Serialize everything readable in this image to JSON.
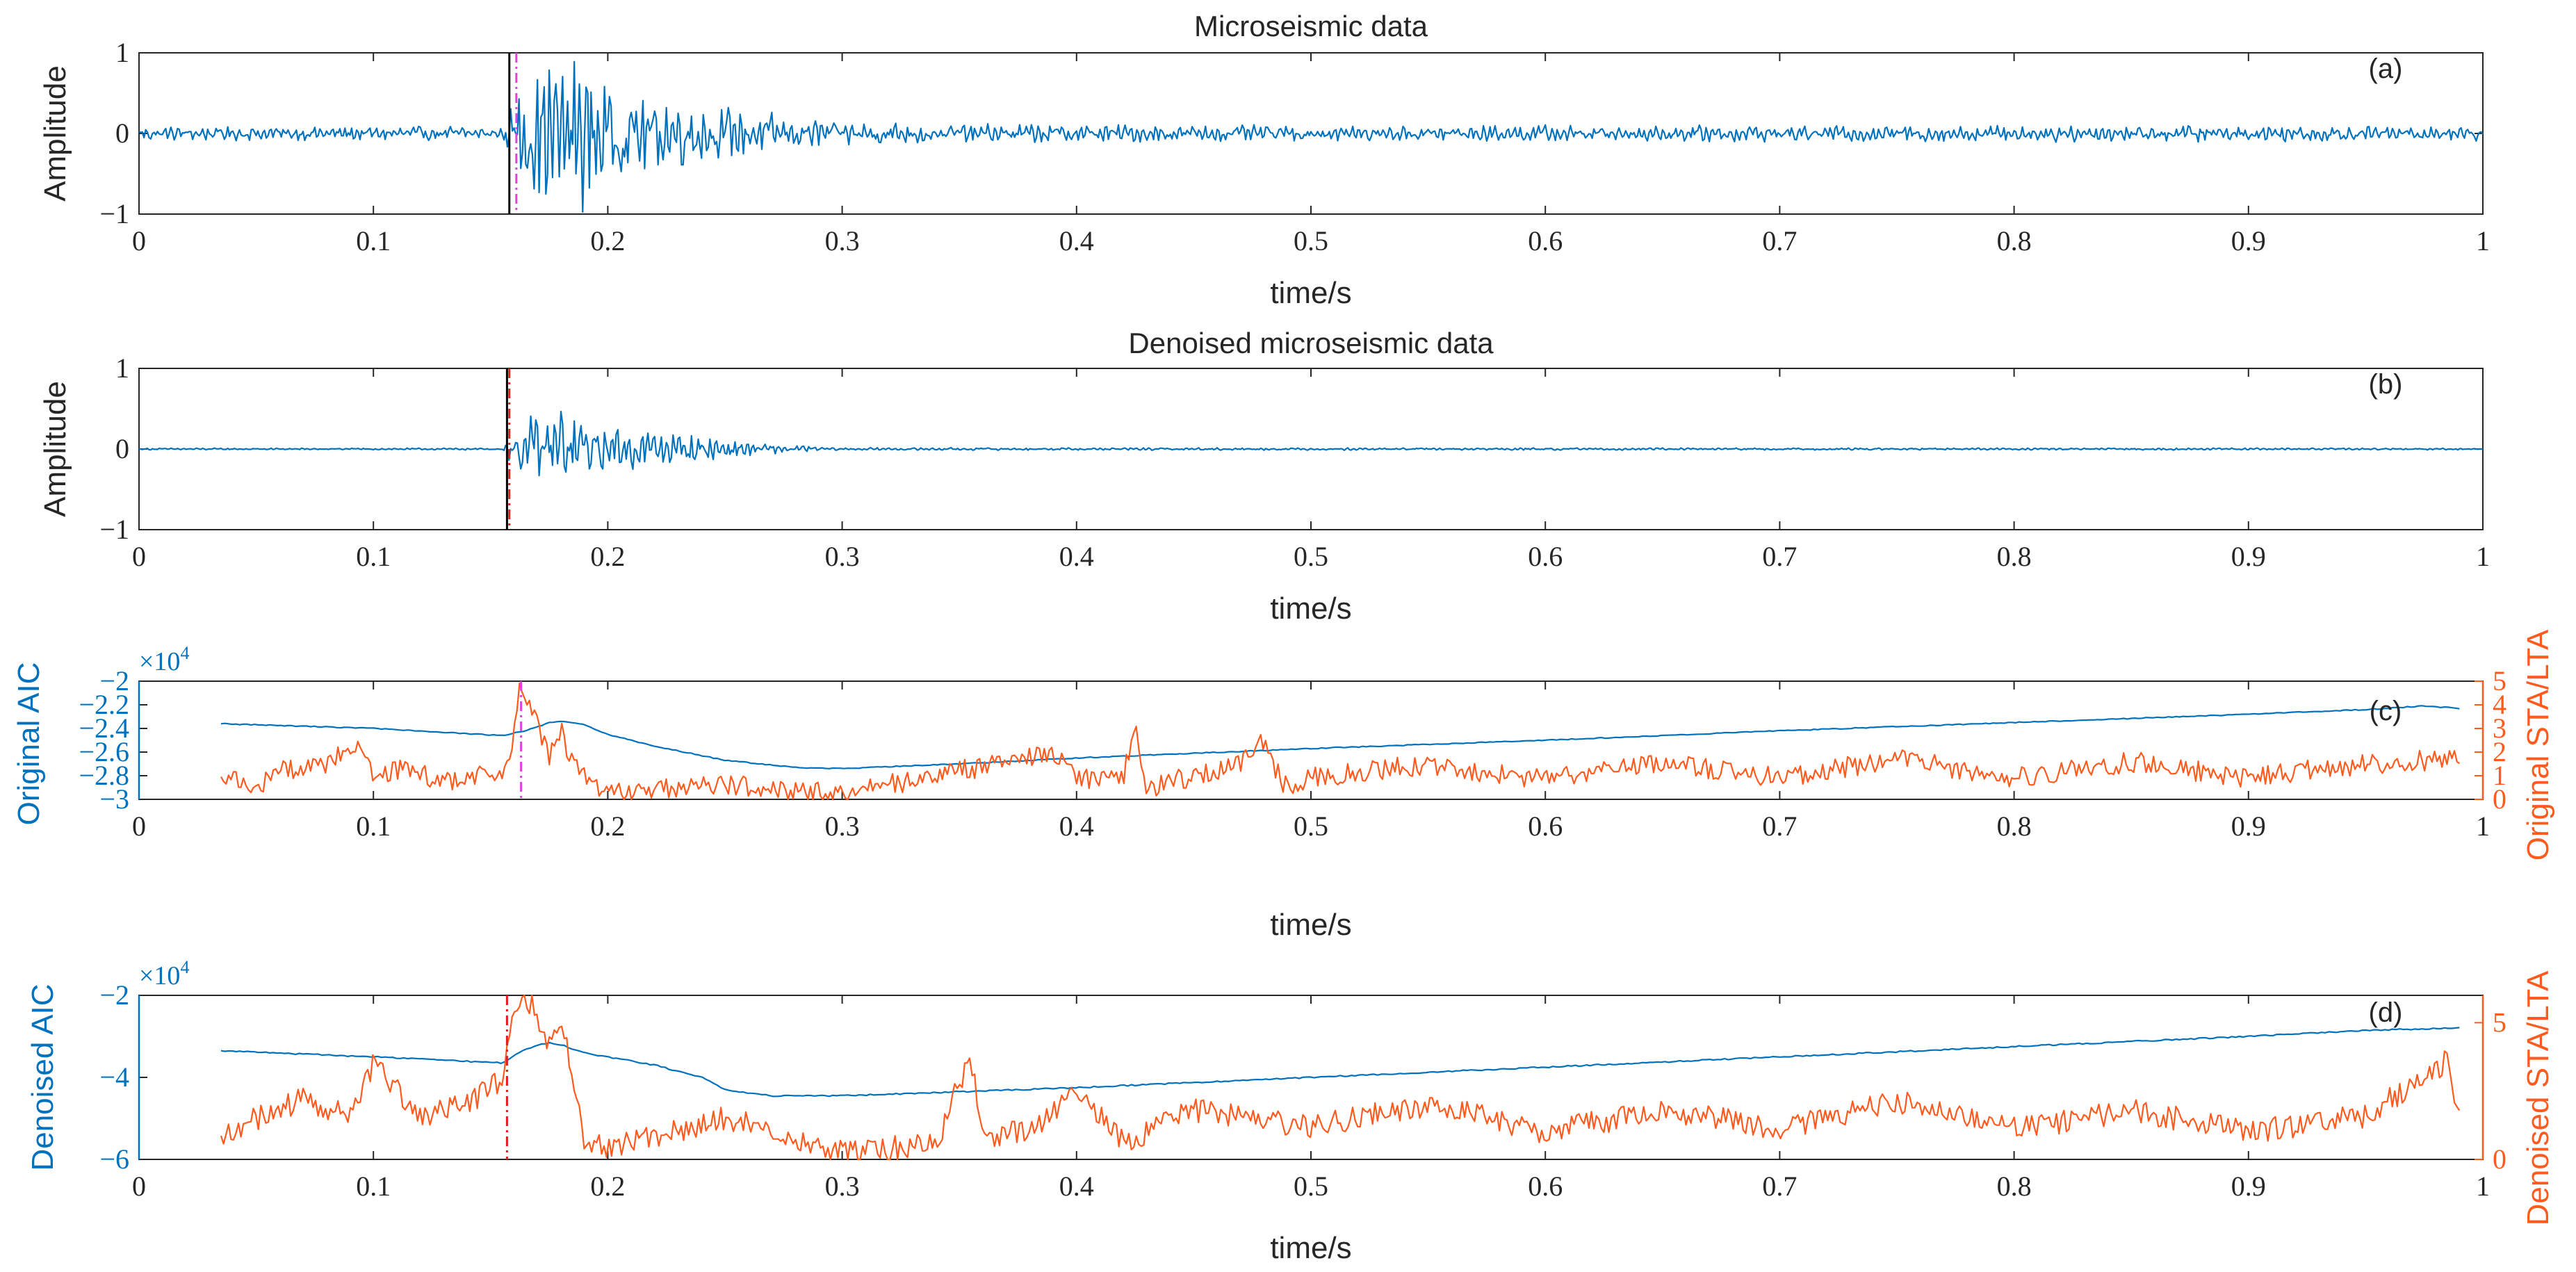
{
  "figure": {
    "colors": {
      "signal": "#0072BD",
      "stalta": "#FF5B1F",
      "pick_black": "#000000",
      "pick_magenta": "#E040E0",
      "pick_red": "#E01E1E",
      "axis": "#262626",
      "tick_label": "#262626"
    }
  },
  "chart_data": [
    {
      "id": "a",
      "type": "line",
      "title": "Microseismic data",
      "panel_label": "(a)",
      "xlabel": "time/s",
      "ylabel": "Amplitude",
      "xlim": [
        0,
        1
      ],
      "ylim": [
        -1,
        1
      ],
      "xticks": [
        0,
        0.1,
        0.2,
        0.3,
        0.4,
        0.5,
        0.6,
        0.7,
        0.8,
        0.9,
        1
      ],
      "xtick_labels": [
        "0",
        "0.1",
        "0.2",
        "0.3",
        "0.4",
        "0.5",
        "0.6",
        "0.7",
        "0.8",
        "0.9",
        "1"
      ],
      "yticks": [
        -1,
        0,
        1
      ],
      "ytick_labels": [
        "−1",
        "0",
        "1"
      ],
      "picks": [
        {
          "t": 0.158,
          "style": "solid",
          "color": "#000000"
        },
        {
          "t": 0.161,
          "style": "dashdot",
          "color": "#E040E0"
        }
      ],
      "series": [
        {
          "name": "Microseismic data",
          "color": "#0072BD",
          "x": [
            0,
            0.03,
            0.06,
            0.09,
            0.12,
            0.15,
            0.158,
            0.162,
            0.166,
            0.17,
            0.174,
            0.178,
            0.182,
            0.186,
            0.19,
            0.194,
            0.198,
            0.202,
            0.21,
            0.22,
            0.23,
            0.24,
            0.25,
            0.26,
            0.27,
            0.28,
            0.29,
            0.3,
            0.33,
            0.36,
            0.39,
            0.42,
            0.45,
            0.5,
            0.6,
            0.7,
            0.8,
            0.9,
            1
          ],
          "y": [
            0,
            0.06,
            -0.08,
            0.06,
            -0.06,
            0.07,
            0.0,
            0.55,
            -0.45,
            0.8,
            -0.7,
            0.6,
            -0.95,
            0.9,
            -0.8,
            0.7,
            -0.6,
            0.65,
            -0.4,
            0.35,
            -0.3,
            0.3,
            -0.25,
            0.2,
            -0.18,
            0.15,
            -0.12,
            0.1,
            -0.09,
            0.08,
            -0.08,
            -0.12,
            0.08,
            -0.06,
            0.07,
            -0.08,
            0.07,
            -0.09,
            0
          ],
          "envelope": {
            "x": [
              0,
              0.155,
              0.16,
              0.17,
              0.18,
              0.19,
              0.2,
              0.22,
              0.24,
              0.26,
              0.28,
              0.3,
              0.35,
              0.4,
              0.5,
              1
            ],
            "amp": [
              0.08,
              0.08,
              0.5,
              0.75,
              0.95,
              0.85,
              0.6,
              0.45,
              0.35,
              0.25,
              0.18,
              0.14,
              0.11,
              0.1,
              0.09,
              0.09
            ]
          }
        }
      ]
    },
    {
      "id": "b",
      "type": "line",
      "title": "Denoised microseismic data",
      "panel_label": "(b)",
      "xlabel": "time/s",
      "ylabel": "Amplitude",
      "xlim": [
        0,
        1
      ],
      "ylim": [
        -1,
        1
      ],
      "xticks": [
        0,
        0.1,
        0.2,
        0.3,
        0.4,
        0.5,
        0.6,
        0.7,
        0.8,
        0.9,
        1
      ],
      "xtick_labels": [
        "0",
        "0.1",
        "0.2",
        "0.3",
        "0.4",
        "0.5",
        "0.6",
        "0.7",
        "0.8",
        "0.9",
        "1"
      ],
      "yticks": [
        -1,
        0,
        1
      ],
      "ytick_labels": [
        "−1",
        "0",
        "1"
      ],
      "picks": [
        {
          "t": 0.157,
          "style": "solid",
          "color": "#000000"
        },
        {
          "t": 0.158,
          "style": "dashdot",
          "color": "#E01E1E"
        }
      ],
      "series": [
        {
          "name": "Denoised microseismic data",
          "color": "#0072BD",
          "x": [
            0,
            0.1,
            0.155,
            0.16,
            0.165,
            0.17,
            0.175,
            0.18,
            0.185,
            0.19,
            0.2,
            0.21,
            0.22,
            0.23,
            0.24,
            0.25,
            0.26,
            0.27,
            0.28,
            0.3,
            0.5,
            1
          ],
          "y": [
            0,
            0,
            0,
            0.2,
            -0.3,
            0.35,
            -0.45,
            0.4,
            -0.6,
            0.3,
            -0.25,
            0.25,
            -0.2,
            0.2,
            -0.15,
            0.12,
            -0.08,
            0.05,
            -0.03,
            0.01,
            0,
            0
          ],
          "envelope": {
            "x": [
              0,
              0.155,
              0.16,
              0.17,
              0.18,
              0.19,
              0.2,
              0.22,
              0.24,
              0.26,
              0.28,
              0.3,
              1
            ],
            "amp": [
              0.01,
              0.01,
              0.25,
              0.4,
              0.55,
              0.35,
              0.25,
              0.2,
              0.15,
              0.08,
              0.04,
              0.015,
              0.01
            ]
          }
        }
      ]
    },
    {
      "id": "c",
      "type": "line",
      "panel_label": "(c)",
      "xlabel": "time/s",
      "ylabel": "Original AIC",
      "ylabel_right": "Original STA/LTA",
      "exponent_label": "×10",
      "exponent_power": "4",
      "xlim": [
        0,
        1
      ],
      "ylim": [
        -3,
        -2
      ],
      "ylim_right": [
        0,
        5
      ],
      "xticks": [
        0,
        0.1,
        0.2,
        0.3,
        0.4,
        0.5,
        0.6,
        0.7,
        0.8,
        0.9,
        1
      ],
      "xtick_labels": [
        "0",
        "0.1",
        "0.2",
        "0.3",
        "0.4",
        "0.5",
        "0.6",
        "0.7",
        "0.8",
        "0.9",
        "1"
      ],
      "yticks": [
        -3,
        -2.8,
        -2.6,
        -2.4,
        -2.2,
        -2
      ],
      "ytick_labels": [
        "−3",
        "−2.8",
        "−2.6",
        "−2.4",
        "−2.2",
        "−2"
      ],
      "yticks_right": [
        0,
        1,
        2,
        3,
        4,
        5
      ],
      "ytick_labels_right": [
        "0",
        "1",
        "2",
        "3",
        "4",
        "5"
      ],
      "picks": [
        {
          "t": 0.163,
          "style": "dashdot",
          "color": "#E040E0"
        }
      ],
      "series": [
        {
          "name": "Original AIC",
          "axis": "left",
          "color": "#0072BD",
          "x": [
            0.035,
            0.1,
            0.155,
            0.165,
            0.175,
            0.18,
            0.19,
            0.2,
            0.22,
            0.25,
            0.28,
            0.3,
            0.35,
            0.4,
            0.5,
            0.6,
            0.7,
            0.8,
            0.9,
            0.95,
            0.975,
            0.99
          ],
          "y": [
            -2.36,
            -2.4,
            -2.46,
            -2.42,
            -2.35,
            -2.34,
            -2.37,
            -2.45,
            -2.55,
            -2.67,
            -2.73,
            -2.74,
            -2.7,
            -2.65,
            -2.57,
            -2.5,
            -2.42,
            -2.35,
            -2.28,
            -2.24,
            -2.21,
            -2.23
          ]
        },
        {
          "name": "Original STA/LTA",
          "axis": "right",
          "color": "#FF5B1F",
          "x": [
            0.035,
            0.05,
            0.06,
            0.08,
            0.095,
            0.1,
            0.11,
            0.13,
            0.15,
            0.158,
            0.162,
            0.166,
            0.17,
            0.175,
            0.18,
            0.185,
            0.19,
            0.2,
            0.25,
            0.3,
            0.35,
            0.39,
            0.4,
            0.42,
            0.425,
            0.43,
            0.45,
            0.47,
            0.478,
            0.49,
            0.5,
            0.55,
            0.6,
            0.65,
            0.7,
            0.75,
            0.8,
            0.85,
            0.9,
            0.95,
            0.99
          ],
          "y": [
            0.9,
            0.5,
            1.2,
            1.5,
            2.5,
            0.6,
            1.3,
            0.8,
            1.0,
            1.5,
            4.5,
            4.2,
            3.2,
            1.8,
            2.9,
            1.5,
            1.0,
            0.3,
            0.6,
            0.2,
            1.2,
            2.0,
            0.8,
            1.0,
            3.3,
            0.5,
            1.0,
            1.5,
            2.6,
            0.4,
            0.9,
            1.5,
            0.8,
            1.6,
            0.9,
            1.7,
            0.9,
            1.6,
            0.9,
            1.5,
            1.7
          ]
        }
      ]
    },
    {
      "id": "d",
      "type": "line",
      "panel_label": "(d)",
      "xlabel": "time/s",
      "ylabel": "Denoised AIC",
      "ylabel_right": "Denoised STA/LTA",
      "exponent_label": "×10",
      "exponent_power": "4",
      "xlim": [
        0,
        1
      ],
      "ylim": [
        -6,
        -2
      ],
      "ylim_right": [
        0,
        6
      ],
      "xticks": [
        0,
        0.1,
        0.2,
        0.3,
        0.4,
        0.5,
        0.6,
        0.7,
        0.8,
        0.9,
        1
      ],
      "xtick_labels": [
        "0",
        "0.1",
        "0.2",
        "0.3",
        "0.4",
        "0.5",
        "0.6",
        "0.7",
        "0.8",
        "0.9",
        "1"
      ],
      "yticks": [
        -6,
        -4,
        -2
      ],
      "ytick_labels": [
        "−6",
        "−4",
        "−2"
      ],
      "yticks_right": [
        0,
        5
      ],
      "ytick_labels_right": [
        "0",
        "5"
      ],
      "picks": [
        {
          "t": 0.157,
          "style": "dashdot",
          "color": "#E01E1E"
        }
      ],
      "series": [
        {
          "name": "Denoised AIC",
          "axis": "left",
          "color": "#0072BD",
          "x": [
            0.035,
            0.1,
            0.155,
            0.165,
            0.175,
            0.18,
            0.19,
            0.2,
            0.22,
            0.24,
            0.25,
            0.27,
            0.3,
            0.35,
            0.4,
            0.5,
            0.6,
            0.7,
            0.8,
            0.9,
            0.95,
            0.99
          ],
          "y": [
            -3.35,
            -3.5,
            -3.65,
            -3.3,
            -3.15,
            -3.2,
            -3.4,
            -3.5,
            -3.7,
            -4.0,
            -4.3,
            -4.45,
            -4.45,
            -4.35,
            -4.25,
            -4.0,
            -3.75,
            -3.5,
            -3.25,
            -3.0,
            -2.85,
            -2.8
          ]
        },
        {
          "name": "Denoised STA/LTA",
          "axis": "right",
          "color": "#FF5B1F",
          "x": [
            0.035,
            0.05,
            0.07,
            0.09,
            0.1,
            0.12,
            0.14,
            0.155,
            0.16,
            0.165,
            0.17,
            0.175,
            0.18,
            0.185,
            0.19,
            0.2,
            0.25,
            0.3,
            0.34,
            0.35,
            0.355,
            0.36,
            0.38,
            0.4,
            0.42,
            0.45,
            0.5,
            0.55,
            0.6,
            0.65,
            0.7,
            0.75,
            0.8,
            0.85,
            0.9,
            0.95,
            0.985,
            0.99
          ],
          "y": [
            0.8,
            1.5,
            2.2,
            1.6,
            3.5,
            1.5,
            2.0,
            3.0,
            5.5,
            6.0,
            5.3,
            4.3,
            5.0,
            3.2,
            0.8,
            0.5,
            1.5,
            0.3,
            0.5,
            2.8,
            3.5,
            0.9,
            1.0,
            2.6,
            0.6,
            1.8,
            1.2,
            2.0,
            1.0,
            1.8,
            1.1,
            2.1,
            1.1,
            1.8,
            1.0,
            1.6,
            3.6,
            1.5
          ]
        }
      ]
    }
  ]
}
